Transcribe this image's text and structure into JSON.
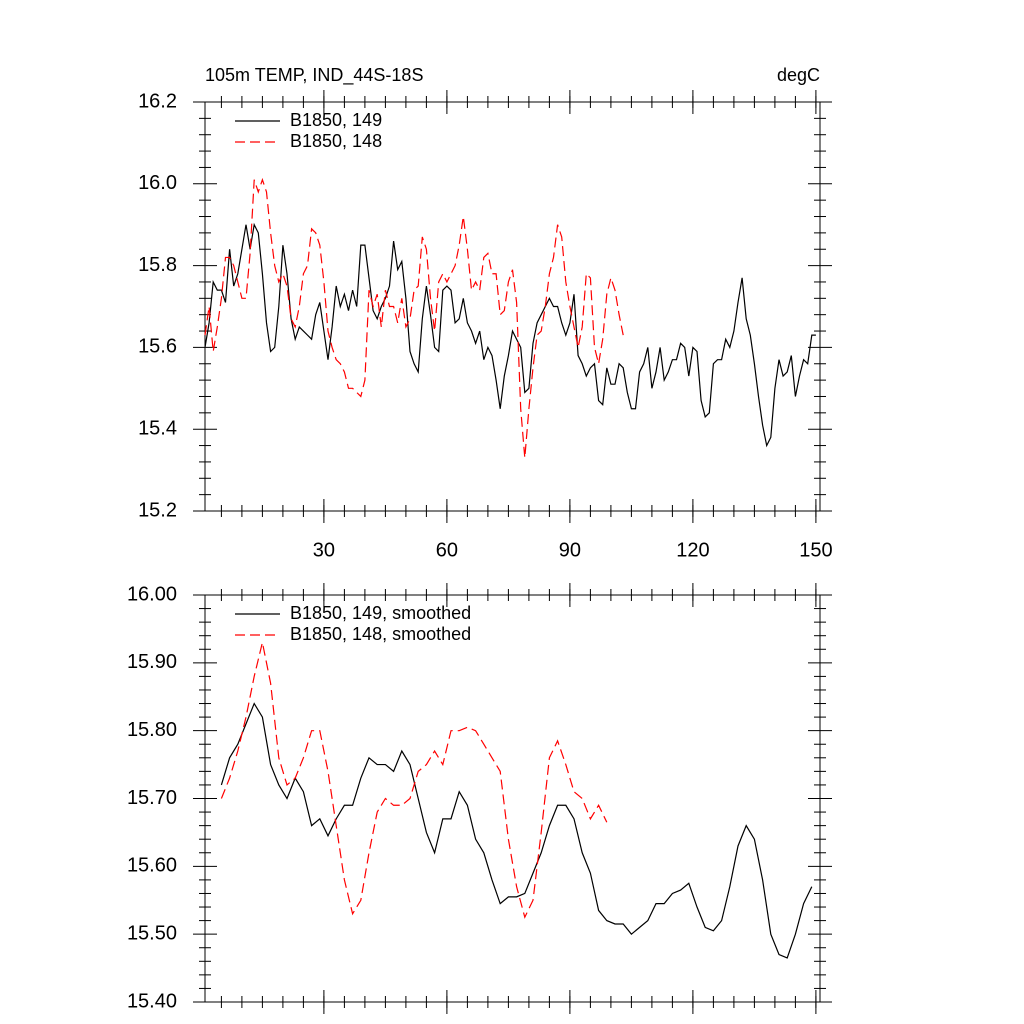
{
  "chart_data": [
    {
      "type": "line",
      "title": "105m TEMP, IND_44S-18S",
      "units_label": "degC",
      "xlim": [
        1,
        151
      ],
      "xticks": [
        30,
        60,
        90,
        120,
        150
      ],
      "show_xtick_labels": true,
      "ylim": [
        15.2,
        16.2
      ],
      "yticks": [
        15.2,
        15.4,
        15.6,
        15.8,
        {
          "value": 16,
          "label": "16.0"
        },
        16.2
      ],
      "legend": "upper left",
      "series": [
        {
          "name": "B1850, 149",
          "color": "#000000",
          "style": "solid",
          "x": [
            1,
            2,
            3,
            4,
            5,
            6,
            7,
            8,
            9,
            10,
            11,
            12,
            13,
            14,
            15,
            16,
            17,
            18,
            19,
            20,
            21,
            22,
            23,
            24,
            25,
            26,
            27,
            28,
            29,
            30,
            31,
            32,
            33,
            34,
            35,
            36,
            37,
            38,
            39,
            40,
            41,
            42,
            43,
            44,
            45,
            46,
            47,
            48,
            49,
            50,
            51,
            52,
            53,
            54,
            55,
            56,
            57,
            58,
            59,
            60,
            61,
            62,
            63,
            64,
            65,
            66,
            67,
            68,
            69,
            70,
            71,
            72,
            73,
            74,
            75,
            76,
            77,
            78,
            79,
            80,
            81,
            82,
            83,
            84,
            85,
            86,
            87,
            88,
            89,
            90,
            91,
            92,
            93,
            94,
            95,
            96,
            97,
            98,
            99,
            100,
            101,
            102,
            103,
            104,
            105,
            106,
            107,
            108,
            109,
            110,
            111,
            112,
            113,
            114,
            115,
            116,
            117,
            118,
            119,
            120,
            121,
            122,
            123,
            124,
            125,
            126,
            127,
            128,
            129,
            130,
            131,
            132,
            133,
            134,
            135,
            136,
            137,
            138,
            139,
            140,
            141,
            142,
            143,
            144,
            145,
            146,
            147,
            148,
            149,
            150
          ],
          "values": [
            15.6,
            15.66,
            15.76,
            15.74,
            15.74,
            15.71,
            15.84,
            15.75,
            15.78,
            15.84,
            15.9,
            15.84,
            15.9,
            15.88,
            15.78,
            15.66,
            15.59,
            15.6,
            15.7,
            15.85,
            15.78,
            15.67,
            15.62,
            15.65,
            15.64,
            15.63,
            15.62,
            15.68,
            15.71,
            15.64,
            15.57,
            15.65,
            15.75,
            15.7,
            15.73,
            15.69,
            15.74,
            15.7,
            15.85,
            15.85,
            15.77,
            15.69,
            15.67,
            15.7,
            15.72,
            15.75,
            15.86,
            15.79,
            15.81,
            15.72,
            15.59,
            15.56,
            15.54,
            15.67,
            15.75,
            15.68,
            15.6,
            15.59,
            15.74,
            15.75,
            15.74,
            15.66,
            15.67,
            15.72,
            15.66,
            15.64,
            15.61,
            15.64,
            15.57,
            15.6,
            15.58,
            15.52,
            15.45,
            15.53,
            15.58,
            15.64,
            15.62,
            15.6,
            15.49,
            15.5,
            15.61,
            15.66,
            15.68,
            15.7,
            15.72,
            15.7,
            15.7,
            15.66,
            15.63,
            15.66,
            15.73,
            15.58,
            15.56,
            15.53,
            15.55,
            15.56,
            15.47,
            15.46,
            15.55,
            15.51,
            15.51,
            15.56,
            15.55,
            15.49,
            15.45,
            15.45,
            15.54,
            15.56,
            15.6,
            15.5,
            15.54,
            15.6,
            15.52,
            15.54,
            15.57,
            15.57,
            15.61,
            15.6,
            15.53,
            15.6,
            15.59,
            15.47,
            15.43,
            15.44,
            15.56,
            15.57,
            15.57,
            15.62,
            15.6,
            15.64,
            15.71,
            15.77,
            15.67,
            15.63,
            15.56,
            15.48,
            15.41,
            15.36,
            15.38,
            15.5,
            15.57,
            15.53,
            15.54,
            15.58,
            15.48,
            15.53,
            15.57,
            15.56,
            15.63,
            15.63
          ]
        },
        {
          "name": "B1850, 148",
          "color": "#ff0000",
          "style": "dashed",
          "x": [
            1,
            2,
            3,
            4,
            5,
            6,
            7,
            8,
            9,
            10,
            11,
            12,
            13,
            14,
            15,
            16,
            17,
            18,
            19,
            20,
            21,
            22,
            23,
            24,
            25,
            26,
            27,
            28,
            29,
            30,
            31,
            32,
            33,
            34,
            35,
            36,
            37,
            38,
            39,
            40,
            41,
            42,
            43,
            44,
            45,
            46,
            47,
            48,
            49,
            50,
            51,
            52,
            53,
            54,
            55,
            56,
            57,
            58,
            59,
            60,
            61,
            62,
            63,
            64,
            65,
            66,
            67,
            68,
            69,
            70,
            71,
            72,
            73,
            74,
            75,
            76,
            77,
            78,
            79,
            80,
            81,
            82,
            83,
            84,
            85,
            86,
            87,
            88,
            89,
            90,
            91,
            92,
            93,
            94,
            95,
            96,
            97,
            98,
            99,
            100,
            101,
            102,
            103
          ],
          "values": [
            15.63,
            15.7,
            15.59,
            15.65,
            15.72,
            15.82,
            15.82,
            15.8,
            15.76,
            15.72,
            15.72,
            15.83,
            16.01,
            15.98,
            16.01,
            15.98,
            15.88,
            15.8,
            15.76,
            15.78,
            15.75,
            15.67,
            15.65,
            15.7,
            15.78,
            15.8,
            15.89,
            15.88,
            15.85,
            15.76,
            15.64,
            15.6,
            15.57,
            15.56,
            15.54,
            15.5,
            15.5,
            15.49,
            15.48,
            15.52,
            15.74,
            15.7,
            15.73,
            15.65,
            15.74,
            15.7,
            15.7,
            15.66,
            15.72,
            15.65,
            15.67,
            15.74,
            15.75,
            15.87,
            15.84,
            15.72,
            15.64,
            15.76,
            15.78,
            15.76,
            15.78,
            15.8,
            15.85,
            15.92,
            15.84,
            15.74,
            15.76,
            15.74,
            15.82,
            15.83,
            15.78,
            15.78,
            15.68,
            15.69,
            15.76,
            15.79,
            15.71,
            15.45,
            15.33,
            15.45,
            15.55,
            15.63,
            15.64,
            15.7,
            15.78,
            15.82,
            15.9,
            15.87,
            15.76,
            15.7,
            15.65,
            15.6,
            15.65,
            15.78,
            15.77,
            15.6,
            15.56,
            15.62,
            15.73,
            15.77,
            15.74,
            15.68,
            15.63
          ]
        }
      ]
    },
    {
      "type": "line",
      "xlim": [
        1,
        151
      ],
      "xticks": [
        30,
        60,
        90,
        120,
        150
      ],
      "show_xtick_labels": false,
      "ylim": [
        15.4,
        16.0
      ],
      "yticks": [
        {
          "value": 15.4,
          "label": "15.40"
        },
        {
          "value": 15.5,
          "label": "15.50"
        },
        {
          "value": 15.6,
          "label": "15.60"
        },
        {
          "value": 15.7,
          "label": "15.70"
        },
        {
          "value": 15.8,
          "label": "15.80"
        },
        {
          "value": 15.9,
          "label": "15.90"
        },
        {
          "value": 16,
          "label": "16.00"
        }
      ],
      "legend": "upper left",
      "series": [
        {
          "name": "B1850, 149, smoothed",
          "color": "#000000",
          "style": "solid",
          "x": [
            5,
            7,
            9,
            11,
            13,
            15,
            17,
            19,
            21,
            23,
            25,
            27,
            29,
            31,
            33,
            35,
            37,
            39,
            41,
            43,
            45,
            47,
            49,
            51,
            53,
            55,
            57,
            59,
            61,
            63,
            65,
            67,
            69,
            71,
            73,
            75,
            77,
            79,
            81,
            83,
            85,
            87,
            89,
            91,
            93,
            95,
            97,
            99,
            101,
            103,
            105,
            107,
            109,
            111,
            113,
            115,
            117,
            119,
            121,
            123,
            125,
            127,
            129,
            131,
            133,
            135,
            137,
            139,
            141,
            143,
            145,
            147,
            149
          ],
          "values": [
            15.72,
            15.76,
            15.78,
            15.81,
            15.84,
            15.82,
            15.75,
            15.72,
            15.7,
            15.73,
            15.71,
            15.66,
            15.67,
            15.645,
            15.67,
            15.69,
            15.69,
            15.73,
            15.76,
            15.75,
            15.75,
            15.74,
            15.77,
            15.75,
            15.7,
            15.65,
            15.62,
            15.67,
            15.67,
            15.71,
            15.69,
            15.64,
            15.62,
            15.58,
            15.545,
            15.555,
            15.555,
            15.56,
            15.59,
            15.62,
            15.66,
            15.69,
            15.69,
            15.67,
            15.62,
            15.59,
            15.535,
            15.52,
            15.515,
            15.515,
            15.5,
            15.51,
            15.52,
            15.545,
            15.545,
            15.56,
            15.565,
            15.575,
            15.54,
            15.51,
            15.505,
            15.52,
            15.57,
            15.63,
            15.66,
            15.64,
            15.58,
            15.5,
            15.47,
            15.465,
            15.5,
            15.545,
            15.57
          ]
        },
        {
          "name": "B1850, 148, smoothed",
          "color": "#ff0000",
          "style": "dashed",
          "x": [
            5,
            7,
            9,
            11,
            13,
            15,
            17,
            19,
            21,
            23,
            25,
            27,
            29,
            31,
            33,
            35,
            37,
            39,
            41,
            43,
            45,
            47,
            49,
            51,
            53,
            55,
            57,
            59,
            61,
            63,
            65,
            67,
            69,
            71,
            73,
            75,
            77,
            79,
            81,
            83,
            85,
            87,
            89,
            91,
            93,
            95,
            97,
            99
          ],
          "values": [
            15.7,
            15.73,
            15.77,
            15.82,
            15.88,
            15.93,
            15.87,
            15.76,
            15.72,
            15.73,
            15.76,
            15.8,
            15.8,
            15.74,
            15.66,
            15.58,
            15.53,
            15.55,
            15.62,
            15.68,
            15.7,
            15.69,
            15.69,
            15.7,
            15.74,
            15.75,
            15.77,
            15.75,
            15.8,
            15.8,
            15.805,
            15.8,
            15.78,
            15.76,
            15.74,
            15.64,
            15.57,
            15.525,
            15.55,
            15.65,
            15.76,
            15.785,
            15.75,
            15.71,
            15.7,
            15.67,
            15.69,
            15.665
          ]
        }
      ]
    }
  ]
}
